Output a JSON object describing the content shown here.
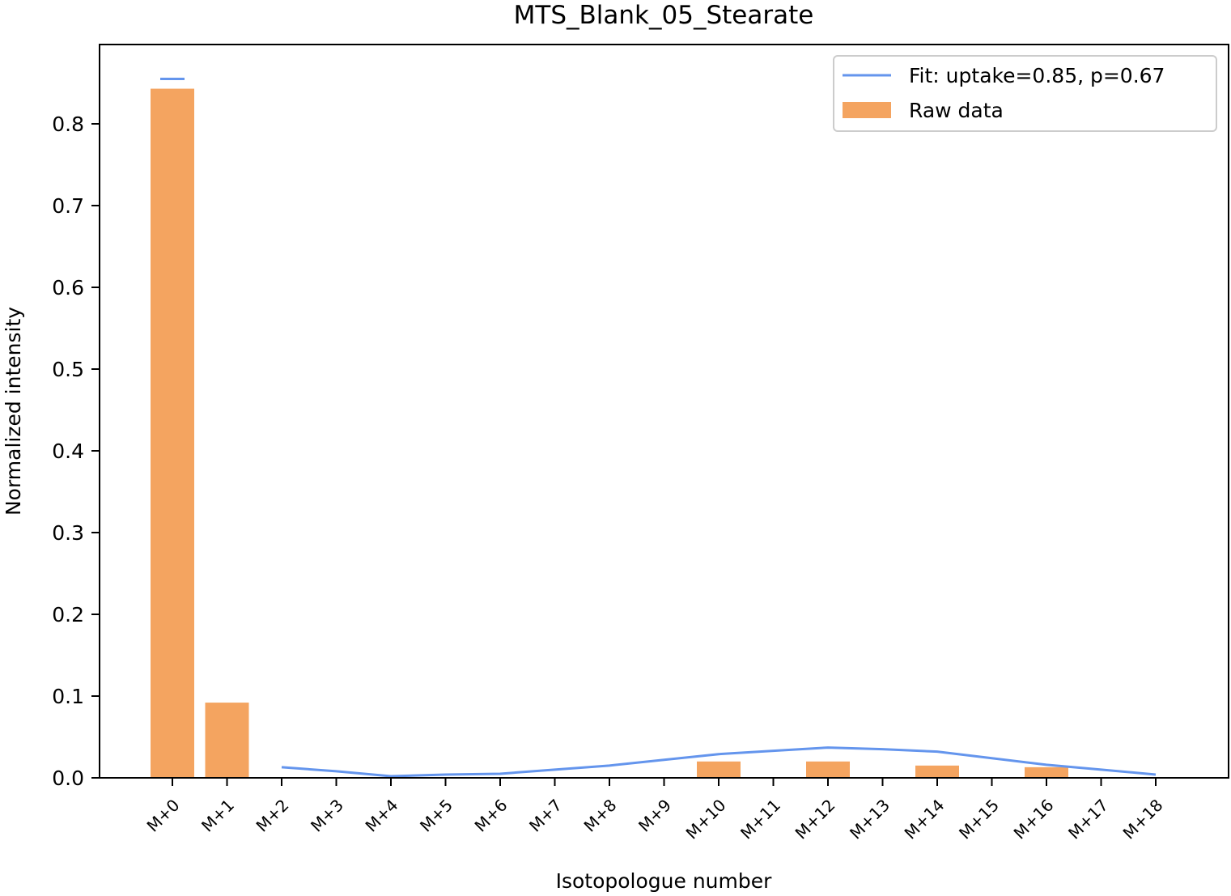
{
  "chart_data": {
    "type": "bar",
    "title": "MTS_Blank_05_Stearate",
    "xlabel": "Isotopologue number",
    "ylabel": "Normalized intensity",
    "ylim": [
      0,
      0.9
    ],
    "yticks": [
      "0.0",
      "0.1",
      "0.2",
      "0.3",
      "0.4",
      "0.5",
      "0.6",
      "0.7",
      "0.8"
    ],
    "categories": [
      "M+0",
      "M+1",
      "M+2",
      "M+3",
      "M+4",
      "M+5",
      "M+6",
      "M+7",
      "M+8",
      "M+9",
      "M+10",
      "M+11",
      "M+12",
      "M+13",
      "M+14",
      "M+15",
      "M+16",
      "M+17",
      "M+18"
    ],
    "legend_position": "top-right",
    "grid": false,
    "series": [
      {
        "name": "Raw data",
        "kind": "bar",
        "color": "#f4a460",
        "values": [
          0.843,
          0.092,
          0,
          0,
          0,
          0,
          0,
          0,
          0,
          0,
          0.02,
          0,
          0.02,
          0,
          0.015,
          0,
          0.013,
          0,
          0
        ]
      },
      {
        "name": "Fit: uptake=0.85, p=0.67",
        "kind": "line",
        "color": "#6495ed",
        "values": [
          0.855,
          null,
          0.013,
          0.008,
          0.002,
          0.004,
          0.005,
          0.01,
          0.015,
          0.022,
          0.029,
          0.033,
          0.037,
          0.035,
          0.032,
          0.024,
          0.016,
          0.01,
          0.004
        ]
      }
    ]
  }
}
